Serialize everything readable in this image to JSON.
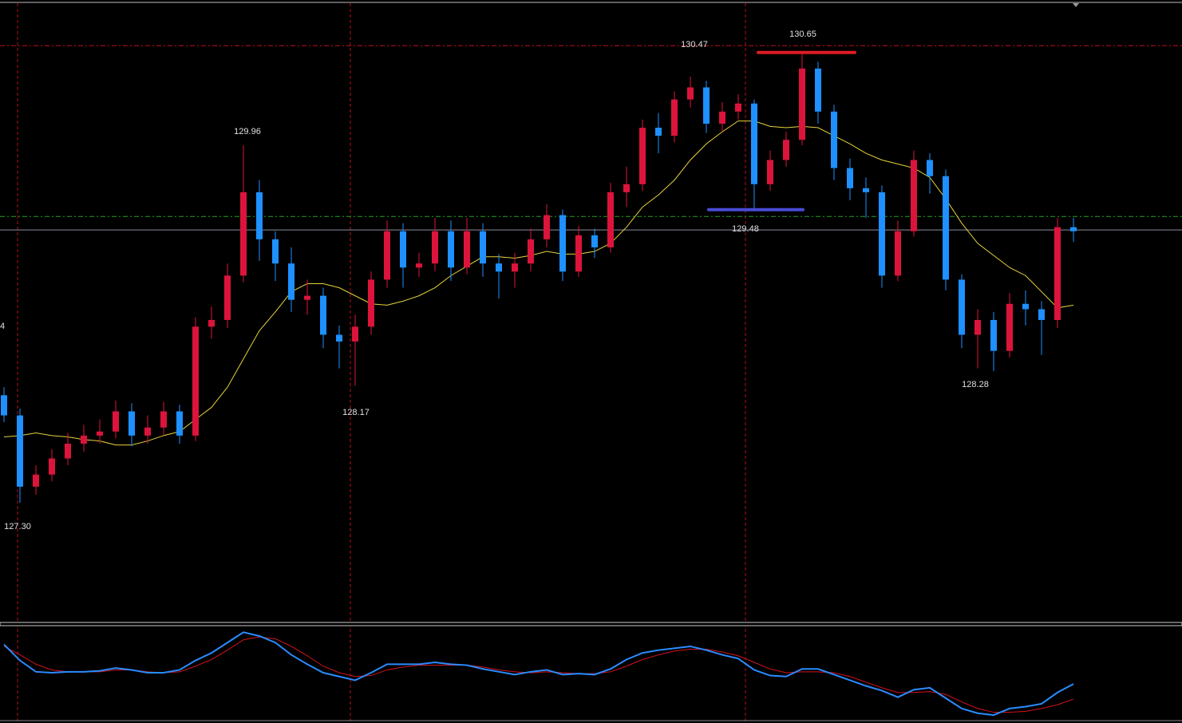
{
  "chart_data": {
    "type": "candlestick",
    "ylim": [
      126.41,
      131.04
    ],
    "up_color": "#dc143c",
    "down_color": "#1e90ff",
    "candles": [
      [
        128.1,
        128.16,
        127.9,
        127.95
      ],
      [
        127.95,
        128.0,
        127.3,
        127.42
      ],
      [
        127.42,
        127.58,
        127.36,
        127.51
      ],
      [
        127.51,
        127.7,
        127.46,
        127.63
      ],
      [
        127.63,
        127.82,
        127.58,
        127.74
      ],
      [
        127.74,
        127.88,
        127.68,
        127.8
      ],
      [
        127.8,
        127.92,
        127.74,
        127.83
      ],
      [
        127.83,
        128.06,
        127.78,
        127.98
      ],
      [
        127.98,
        128.04,
        127.72,
        127.8
      ],
      [
        127.8,
        127.95,
        127.74,
        127.86
      ],
      [
        127.86,
        128.05,
        127.8,
        127.98
      ],
      [
        127.98,
        128.03,
        127.74,
        127.8
      ],
      [
        127.8,
        128.68,
        127.76,
        128.61
      ],
      [
        128.61,
        128.76,
        128.52,
        128.66
      ],
      [
        128.66,
        129.08,
        128.6,
        128.99
      ],
      [
        128.99,
        129.96,
        128.94,
        129.61
      ],
      [
        129.61,
        129.7,
        129.1,
        129.26
      ],
      [
        129.26,
        129.32,
        128.95,
        129.08
      ],
      [
        129.08,
        129.2,
        128.72,
        128.81
      ],
      [
        128.81,
        128.96,
        128.7,
        128.84
      ],
      [
        128.84,
        128.9,
        128.45,
        128.55
      ],
      [
        128.55,
        128.62,
        128.3,
        128.5
      ],
      [
        128.5,
        128.7,
        128.17,
        128.61
      ],
      [
        128.61,
        129.02,
        128.55,
        128.96
      ],
      [
        128.96,
        129.4,
        128.9,
        129.32
      ],
      [
        129.32,
        129.38,
        128.9,
        129.05
      ],
      [
        129.05,
        129.16,
        128.98,
        129.08
      ],
      [
        129.08,
        129.42,
        129.02,
        129.32
      ],
      [
        129.32,
        129.4,
        128.95,
        129.05
      ],
      [
        129.05,
        129.42,
        129.0,
        129.32
      ],
      [
        129.32,
        129.38,
        128.98,
        129.08
      ],
      [
        129.08,
        129.15,
        128.82,
        129.02
      ],
      [
        129.02,
        129.16,
        128.9,
        129.08
      ],
      [
        129.08,
        129.34,
        129.02,
        129.26
      ],
      [
        129.26,
        129.52,
        129.2,
        129.44
      ],
      [
        129.44,
        129.48,
        128.95,
        129.02
      ],
      [
        129.02,
        129.36,
        128.98,
        129.29
      ],
      [
        129.29,
        129.34,
        129.12,
        129.2
      ],
      [
        129.2,
        129.68,
        129.16,
        129.61
      ],
      [
        129.61,
        129.8,
        129.5,
        129.67
      ],
      [
        129.67,
        130.15,
        129.62,
        130.09
      ],
      [
        130.09,
        130.2,
        129.9,
        130.03
      ],
      [
        130.03,
        130.36,
        129.98,
        130.3
      ],
      [
        130.3,
        130.47,
        130.24,
        130.39
      ],
      [
        130.39,
        130.44,
        130.05,
        130.12
      ],
      [
        130.12,
        130.28,
        130.06,
        130.21
      ],
      [
        130.21,
        130.34,
        130.15,
        130.27
      ],
      [
        130.27,
        130.3,
        129.48,
        129.67
      ],
      [
        129.67,
        129.92,
        129.62,
        129.85
      ],
      [
        129.85,
        130.06,
        129.8,
        130.0
      ],
      [
        130.0,
        130.65,
        129.96,
        130.53
      ],
      [
        130.53,
        130.58,
        130.12,
        130.21
      ],
      [
        130.21,
        130.26,
        129.7,
        129.79
      ],
      [
        129.79,
        129.86,
        129.55,
        129.64
      ],
      [
        129.64,
        129.72,
        129.42,
        129.61
      ],
      [
        129.61,
        129.66,
        128.9,
        128.99
      ],
      [
        128.99,
        129.4,
        128.95,
        129.32
      ],
      [
        129.32,
        129.92,
        129.28,
        129.85
      ],
      [
        129.85,
        129.9,
        129.6,
        129.73
      ],
      [
        129.73,
        129.78,
        128.88,
        128.96
      ],
      [
        128.96,
        129.0,
        128.45,
        128.55
      ],
      [
        128.55,
        128.74,
        128.3,
        128.66
      ],
      [
        128.66,
        128.72,
        128.28,
        128.43
      ],
      [
        128.43,
        128.86,
        128.38,
        128.78
      ],
      [
        128.78,
        128.88,
        128.62,
        128.74
      ],
      [
        128.74,
        128.8,
        128.4,
        128.66
      ],
      [
        128.66,
        129.42,
        128.6,
        129.35
      ],
      [
        129.35,
        129.42,
        129.24,
        129.32
      ]
    ],
    "ma": {
      "color": "#e6d23c",
      "values": [
        127.79,
        127.8,
        127.82,
        127.8,
        127.79,
        127.77,
        127.76,
        127.73,
        127.73,
        127.76,
        127.8,
        127.83,
        127.92,
        128.01,
        128.16,
        128.37,
        128.58,
        128.72,
        128.87,
        128.93,
        128.93,
        128.9,
        128.84,
        128.78,
        128.77,
        128.8,
        128.84,
        128.9,
        128.99,
        129.06,
        129.13,
        129.13,
        129.12,
        129.14,
        129.17,
        129.15,
        129.15,
        129.17,
        129.23,
        129.35,
        129.5,
        129.59,
        129.7,
        129.85,
        129.97,
        130.06,
        130.14,
        130.14,
        130.1,
        130.09,
        130.1,
        130.09,
        130.03,
        129.97,
        129.9,
        129.85,
        129.82,
        129.79,
        129.72,
        129.56,
        129.38,
        129.23,
        129.14,
        129.05,
        128.99,
        128.87,
        128.75,
        128.77
      ]
    },
    "hlines": [
      {
        "value": 130.7,
        "color": "#c0101e",
        "style": "dashed"
      },
      {
        "value": 129.43,
        "color": "#22a022",
        "style": "dashed"
      },
      {
        "value": 129.33,
        "color": "#8c8ca0",
        "style": "solid"
      }
    ],
    "support": {
      "value": 129.48,
      "color": "#4a4ad6"
    },
    "resistance": {
      "value": 130.65,
      "color": "#e01c24"
    },
    "labels": [
      "130.47",
      "130.65",
      "129.96",
      "128.17",
      "129.48",
      "127.30",
      "128.28",
      "4"
    ],
    "oscillator": {
      "ylim": [
        0,
        100
      ],
      "series": [
        {
          "color": "#2a8cff",
          "values": [
            80,
            63,
            51,
            50,
            51,
            51,
            52,
            55,
            53,
            50,
            50,
            53,
            63,
            71,
            82,
            93,
            89,
            82,
            69,
            59,
            50,
            46,
            42,
            50,
            59,
            59,
            59,
            61,
            59,
            58,
            54,
            51,
            48,
            51,
            53,
            48,
            49,
            48,
            54,
            64,
            71,
            74,
            76,
            78,
            74,
            69,
            65,
            53,
            47,
            46,
            54,
            54,
            48,
            42,
            36,
            31,
            24,
            32,
            34,
            23,
            12,
            7,
            5,
            12,
            14,
            17,
            29,
            38
          ]
        },
        {
          "color": "#d2141e",
          "values": [
            78,
            69,
            59,
            53,
            51,
            51,
            51,
            53,
            53,
            51,
            50,
            51,
            57,
            64,
            74,
            85,
            88,
            86,
            78,
            68,
            57,
            50,
            46,
            47,
            53,
            56,
            58,
            58,
            58,
            58,
            56,
            53,
            51,
            50,
            51,
            50,
            49,
            49,
            51,
            57,
            64,
            69,
            73,
            75,
            75,
            72,
            68,
            61,
            54,
            50,
            51,
            51,
            50,
            46,
            40,
            34,
            29,
            29,
            30,
            27,
            19,
            12,
            8,
            8,
            9,
            12,
            16,
            22
          ]
        }
      ]
    }
  }
}
